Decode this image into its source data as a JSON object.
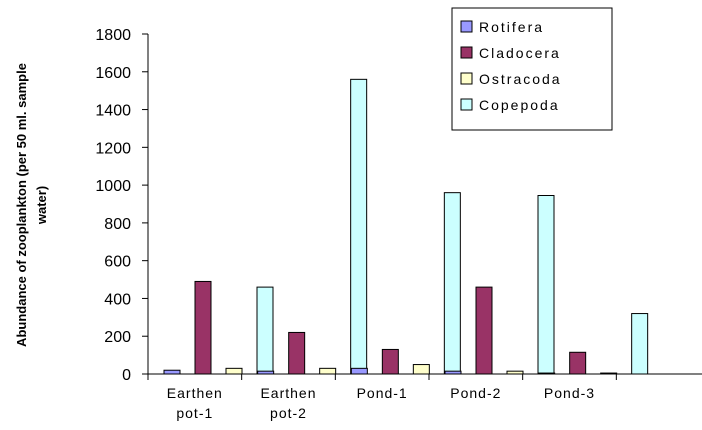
{
  "chart_data": {
    "type": "bar",
    "ylabel_lines": [
      "Abundance of zooplankton (per 50 ml. sample",
      "water)"
    ],
    "categories": [
      [
        "Earthen",
        "pot-1"
      ],
      [
        "Earthen",
        "pot-2"
      ],
      [
        "Pond-1"
      ],
      [
        "Pond-2"
      ],
      [
        "Pond-3"
      ]
    ],
    "ylim": [
      0,
      1800
    ],
    "yticks": [
      0,
      200,
      400,
      600,
      800,
      1000,
      1200,
      1400,
      1600,
      1800
    ],
    "grid": false,
    "legend_position": "top-right",
    "series": [
      {
        "name": "Rotifera",
        "color": "#9999ff",
        "values": [
          20,
          15,
          30,
          15,
          5
        ]
      },
      {
        "name": "Cladocera",
        "color": "#993366",
        "values": [
          490,
          220,
          130,
          460,
          115
        ]
      },
      {
        "name": "Ostracoda",
        "color": "#ffffcc",
        "values": [
          30,
          30,
          50,
          15,
          5
        ]
      },
      {
        "name": "Copepoda",
        "color": "#ccffff",
        "values": [
          460,
          1560,
          960,
          945,
          320
        ]
      }
    ]
  }
}
